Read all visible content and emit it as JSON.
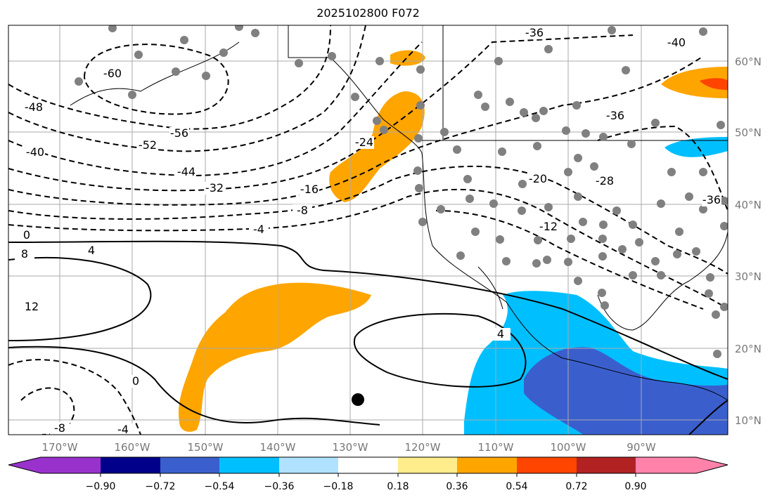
{
  "title": "2025102800 F072",
  "lon_ticks": [
    "170°W",
    "160°W",
    "150°W",
    "140°W",
    "130°W",
    "120°W",
    "110°W",
    "100°W",
    "90°W"
  ],
  "lat_ticks": [
    "60°N",
    "50°N",
    "40°N",
    "30°N",
    "20°N",
    "10°N"
  ],
  "contour_labels": [
    "-36",
    "-40",
    "-60",
    "-48",
    "-56",
    "-52",
    "-40",
    "-44",
    "-32",
    "-24",
    "-16",
    "-8",
    "-4",
    "-36",
    "-20",
    "-28",
    "-12",
    "-36",
    "0",
    "8",
    "4",
    "12",
    "4",
    "0",
    "-8",
    "-4"
  ],
  "colorbar": {
    "colors": [
      "#9932cc",
      "#00008b",
      "#3a5fcd",
      "#00bfff",
      "#b0e2ff",
      "#ffffff",
      "#ffec8b",
      "#ffa500",
      "#ff4500",
      "#b22222",
      "#ff82ab"
    ],
    "labels": [
      "−0.90",
      "−0.72",
      "−0.54",
      "−0.36",
      "−0.18",
      "0.18",
      "0.36",
      "0.54",
      "0.72",
      "0.90"
    ]
  }
}
